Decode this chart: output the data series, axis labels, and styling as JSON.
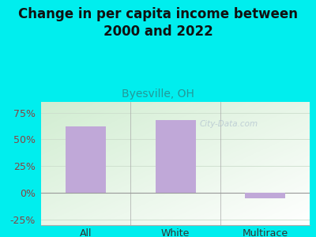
{
  "title": "Change in per capita income between\n2000 and 2022",
  "subtitle": "Byesville, OH",
  "categories": [
    "All",
    "White",
    "Multirace"
  ],
  "values": [
    62,
    68,
    -5
  ],
  "bar_color": "#c0a8d8",
  "title_fontsize": 12,
  "subtitle_fontsize": 10,
  "tick_label_fontsize": 9,
  "ytick_color": "#884444",
  "xtick_color": "#333333",
  "subtitle_color": "#229999",
  "background_color": "#00eeee",
  "plot_bg_left": "#d0eecc",
  "plot_bg_right": "#f0f8f0",
  "ylim": [
    -30,
    85
  ],
  "yticks": [
    -25,
    0,
    25,
    50,
    75
  ],
  "watermark": "City-Data.com"
}
